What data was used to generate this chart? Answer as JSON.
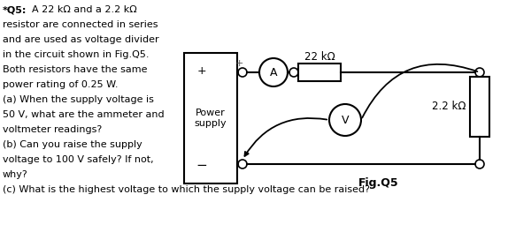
{
  "label_22k": "22 kΩ",
  "label_22k_small": "2.2 kΩ",
  "label_power": "Power\nsupply",
  "label_A": "A",
  "label_V": "V",
  "fig_label": "Fig.Q5",
  "bg_color": "#ffffff",
  "text_color": "#000000",
  "line0_bold": "*Q5:",
  "line0_rest": "  A 22 kΩ and a 2.2 kΩ",
  "lines": [
    "resistor are connected in series",
    "and are used as voltage divider",
    "in the circuit shown in Fig.Q5.",
    "Both resistors have the same",
    "power rating of 0.25 W.",
    "(a) When the supply voltage is",
    "50 V, what are the ammeter and",
    "voltmeter readings?",
    "(b) Can you raise the supply",
    "voltage to 100 V safely? If not,",
    "why?"
  ],
  "line_c": "(c) What is the highest voltage to which the supply voltage can be raised?"
}
